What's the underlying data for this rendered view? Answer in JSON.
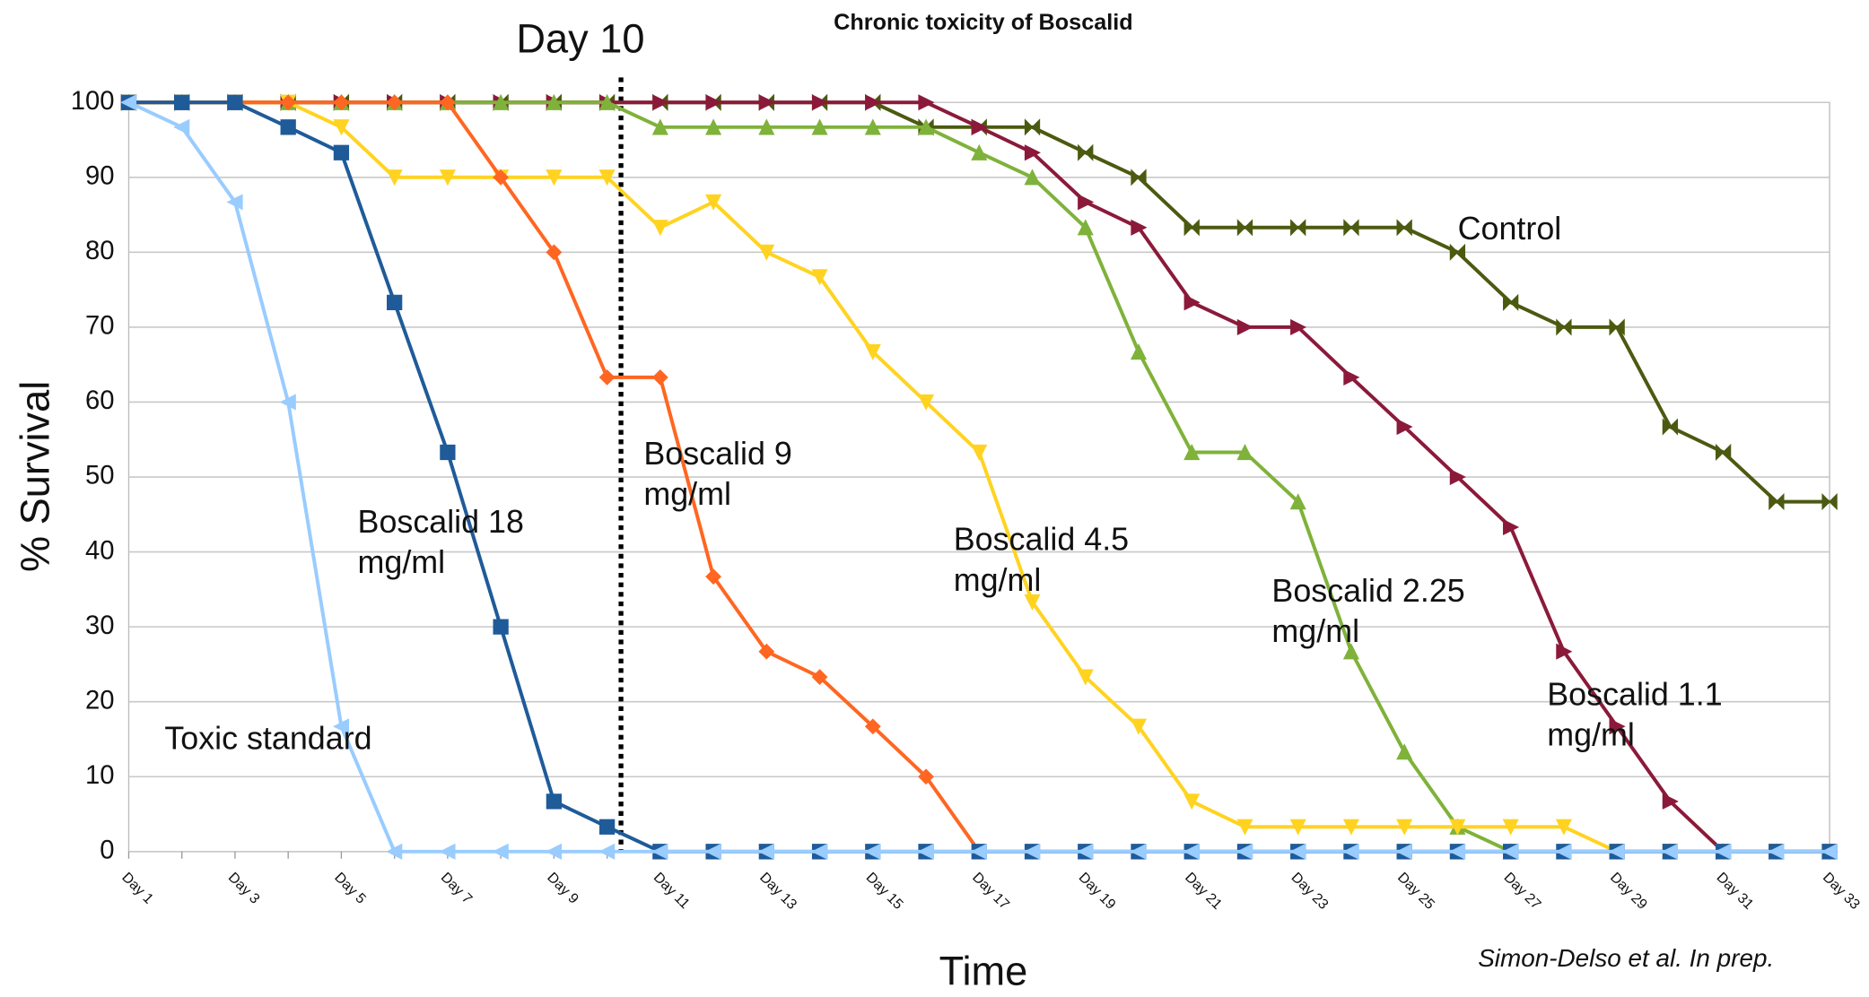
{
  "chart_data": {
    "type": "line",
    "title": "Chronic toxicity of Boscalid",
    "xlabel": "Time",
    "ylabel": "% Survival",
    "annotations": [
      "Day 10",
      "Simon-Delso et al. In prep."
    ],
    "categories": [
      "Day 1",
      null,
      "Day 3",
      null,
      "Day 5",
      null,
      "Day 7",
      null,
      "Day 9",
      null,
      "Day 11",
      null,
      "Day 13",
      null,
      "Day 15",
      null,
      "Day 17",
      null,
      "Day 19",
      null,
      "Day 21",
      null,
      "Day 23",
      null,
      "Day 25",
      null,
      "Day 27",
      null,
      "Day 29",
      null,
      "Day 31",
      null,
      "Day 33"
    ],
    "ylim": [
      0,
      100
    ],
    "yticks": [
      0,
      10,
      20,
      30,
      40,
      50,
      60,
      70,
      80,
      90,
      100
    ],
    "grid": true,
    "series": [
      {
        "name": "Toxic standard",
        "color": "#99ccff",
        "marker": "triangle-left",
        "values": [
          100,
          96.7,
          86.7,
          60,
          16.7,
          0,
          0,
          0,
          0,
          0,
          0,
          0,
          0,
          0,
          0,
          0,
          0,
          0,
          0,
          0,
          0,
          0,
          0,
          0,
          0,
          0,
          0,
          0,
          0,
          0,
          0,
          0,
          0
        ]
      },
      {
        "name": "Boscalid 18 mg/ml",
        "color": "#1f5b99",
        "marker": "square",
        "values": [
          100,
          100,
          100,
          96.7,
          93.3,
          73.3,
          53.3,
          30,
          6.7,
          3.3,
          0,
          0,
          0,
          0,
          0,
          0,
          0,
          0,
          0,
          0,
          0,
          0,
          0,
          0,
          0,
          0,
          0,
          0,
          0,
          0,
          0,
          0,
          0
        ]
      },
      {
        "name": "Boscalid 9 mg/ml",
        "color": "#ff6622",
        "marker": "diamond",
        "values": [
          100,
          100,
          100,
          100,
          100,
          100,
          100,
          90,
          80,
          63.3,
          63.3,
          36.7,
          26.7,
          23.3,
          16.7,
          10,
          0,
          0,
          0,
          0,
          0,
          0,
          0,
          0,
          0,
          0,
          0,
          0,
          0,
          0,
          0,
          0,
          0
        ]
      },
      {
        "name": "Boscalid 4.5 mg/ml",
        "color": "#ffd320",
        "marker": "triangle-down",
        "values": [
          100,
          100,
          100,
          100,
          96.7,
          90,
          90,
          90,
          90,
          90,
          83.3,
          86.7,
          80,
          76.7,
          66.7,
          60,
          53.3,
          33.3,
          23.3,
          16.7,
          6.7,
          3.3,
          3.3,
          3.3,
          3.3,
          3.3,
          3.3,
          3.3,
          0,
          0,
          0,
          0,
          0
        ]
      },
      {
        "name": "Boscalid 2.25 mg/ml",
        "color": "#7fb23a",
        "marker": "triangle-up",
        "values": [
          100,
          100,
          100,
          100,
          100,
          100,
          100,
          100,
          100,
          100,
          96.7,
          96.7,
          96.7,
          96.7,
          96.7,
          96.7,
          93.3,
          90,
          83.3,
          66.7,
          53.3,
          53.3,
          46.7,
          26.7,
          13.3,
          3.3,
          0,
          0,
          0,
          0,
          0,
          0,
          0
        ]
      },
      {
        "name": "Boscalid 1.1 mg/ml",
        "color": "#8b1a3a",
        "marker": "triangle-right",
        "values": [
          100,
          100,
          100,
          100,
          100,
          100,
          100,
          100,
          100,
          100,
          100,
          100,
          100,
          100,
          100,
          100,
          96.7,
          93.3,
          86.7,
          83.3,
          73.3,
          70,
          70,
          63.3,
          56.7,
          50,
          43.3,
          26.7,
          16.7,
          6.7,
          0,
          0,
          0
        ]
      },
      {
        "name": "Control",
        "color": "#4b5a10",
        "marker": "bowtie",
        "values": [
          100,
          100,
          100,
          100,
          100,
          100,
          100,
          100,
          100,
          100,
          100,
          100,
          100,
          100,
          100,
          96.7,
          96.7,
          96.7,
          93.3,
          90,
          83.3,
          83.3,
          83.3,
          83.3,
          83.3,
          80,
          73.3,
          70,
          70,
          56.7,
          53.3,
          46.7,
          46.7
        ]
      }
    ]
  }
}
